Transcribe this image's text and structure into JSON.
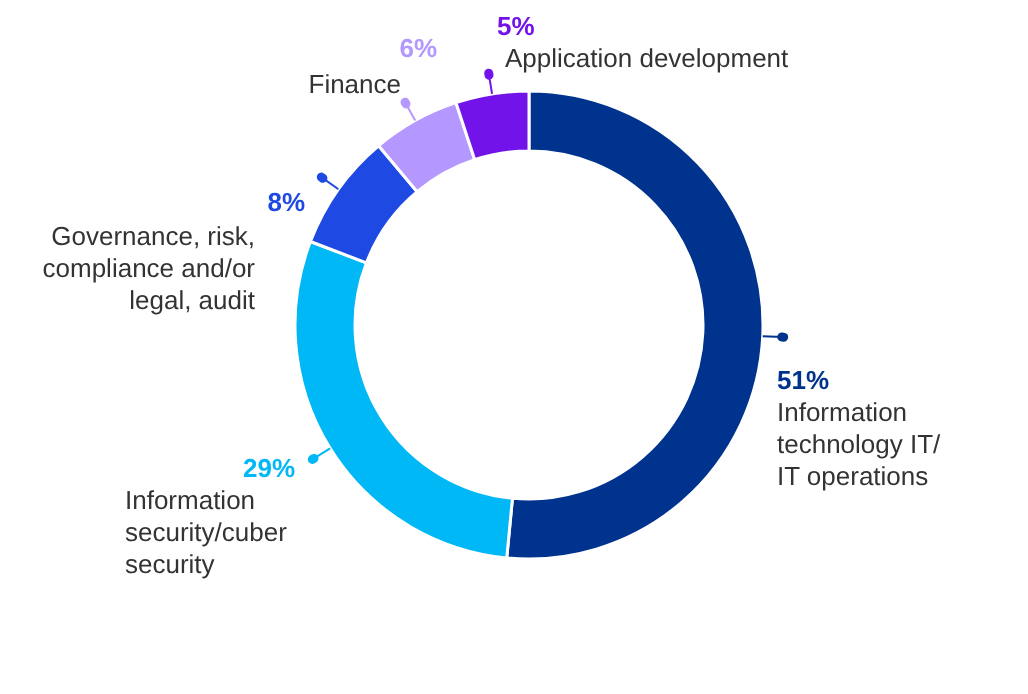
{
  "chart_data": {
    "type": "donut",
    "categories": [
      "Information technology IT/ IT operations",
      "Information security/cuber security",
      "Governance, risk, compliance and/or legal, audit",
      "Finance",
      "Application development"
    ],
    "values": [
      51,
      29,
      8,
      6,
      5
    ],
    "colors": [
      "#00338d",
      "#00b8f5",
      "#1e49e2",
      "#b497ff",
      "#7213ea"
    ],
    "value_labels": [
      "51%",
      "29%",
      "8%",
      "6%",
      "5%"
    ]
  }
}
